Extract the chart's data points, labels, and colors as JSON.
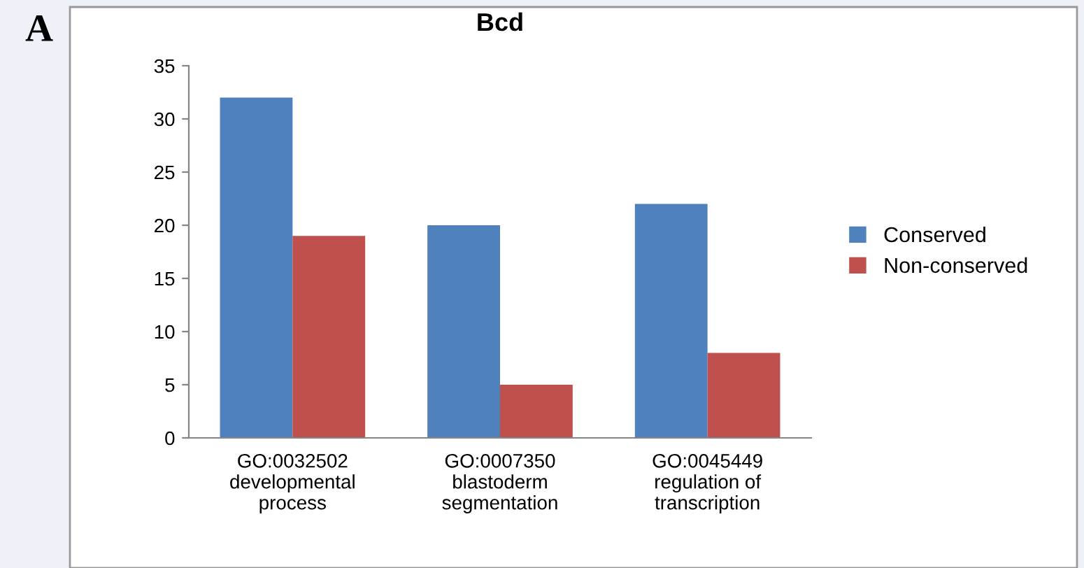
{
  "chart_data": {
    "type": "bar",
    "title": "Bcd",
    "categories": [
      "GO:0032502\ndevelopmental\nprocess",
      "GO:0007350\nblastoderm\nsegmentation",
      "GO:0045449\nregulation of\ntranscription"
    ],
    "series": [
      {
        "name": "Conserved",
        "color": "#4f81bd",
        "values": [
          32,
          20,
          22
        ]
      },
      {
        "name": "Non-conserved",
        "color": "#c0504d",
        "values": [
          19,
          5,
          8
        ]
      }
    ],
    "ylim": [
      0,
      35
    ],
    "yticks": [
      0,
      5,
      10,
      15,
      20,
      25,
      30,
      35
    ],
    "grid": false,
    "legend": "right",
    "annotations": [
      "A"
    ]
  }
}
